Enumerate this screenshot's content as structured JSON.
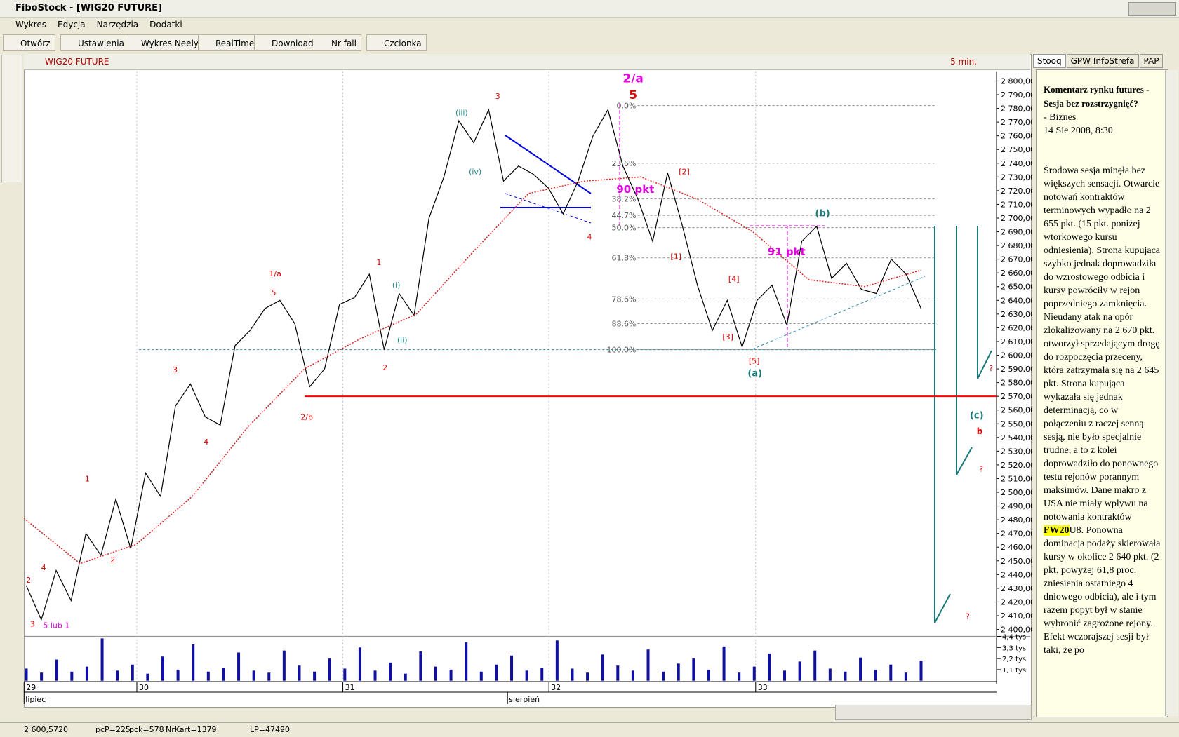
{
  "window": {
    "title": "FiboStock - [WIG20 FUTURE]"
  },
  "menu": [
    "Wykres",
    "Edycja",
    "Narzędzia",
    "Dodatki"
  ],
  "toolbar": [
    "Otwórz",
    "Ustawienia",
    "Wykres Neely",
    "RealTime",
    "Download",
    "Nr fali",
    "Czcionka"
  ],
  "chart_data": {
    "type": "line",
    "title": "WIG20 FUTURE",
    "interval": "5 min.",
    "series": [
      {
        "color": "#000000",
        "values": [
          2432,
          2407,
          2443,
          2421,
          2470,
          2454,
          2495,
          2459,
          2514,
          2497,
          2563,
          2579,
          2555,
          2549,
          2607,
          2618,
          2634,
          2640,
          2623,
          2577,
          2590,
          2637,
          2642,
          2659,
          2604,
          2645,
          2629,
          2700,
          2730,
          2771,
          2755,
          2779,
          2727,
          2738,
          2732,
          2722,
          2703,
          2727,
          2760,
          2779,
          2738,
          2714,
          2683,
          2733,
          2694,
          2651,
          2618,
          2640,
          2606,
          2640,
          2651,
          2622,
          2683,
          2694,
          2656,
          2667,
          2648,
          2645,
          2670,
          2659,
          2634
        ]
      },
      {
        "color": "#e02020",
        "dashed": true,
        "values": [
          2481,
          2448,
          2462,
          2497,
          2548,
          2590,
          2612,
          2630,
          2675,
          2718,
          2727,
          2730,
          2714,
          2690,
          2655,
          2650,
          2662
        ]
      }
    ],
    "ylim": [
      2396,
      2807
    ],
    "yticks": [
      {
        "value": 2400,
        "label": "2 400,00"
      },
      {
        "value": 2410,
        "label": "2 410,00"
      },
      {
        "value": 2420,
        "label": "2 420,00"
      },
      {
        "value": 2430,
        "label": "2 430,00"
      },
      {
        "value": 2440,
        "label": "2 440,00"
      },
      {
        "value": 2450,
        "label": "2 450,00"
      },
      {
        "value": 2460,
        "label": "2 460,00"
      },
      {
        "value": 2470,
        "label": "2 470,00"
      },
      {
        "value": 2480,
        "label": "2 480,00"
      },
      {
        "value": 2490,
        "label": "2 490,00"
      },
      {
        "value": 2500,
        "label": "2 500,00"
      },
      {
        "value": 2510,
        "label": "2 510,00"
      },
      {
        "value": 2520,
        "label": "2 520,00"
      },
      {
        "value": 2530,
        "label": "2 530,00"
      },
      {
        "value": 2540,
        "label": "2 540,00"
      },
      {
        "value": 2550,
        "label": "2 550,00"
      },
      {
        "value": 2560,
        "label": "2 560,00"
      },
      {
        "value": 2570,
        "label": "2 570,00"
      },
      {
        "value": 2580,
        "label": "2 580,00"
      },
      {
        "value": 2590,
        "label": "2 590,00"
      },
      {
        "value": 2600,
        "label": "2 600,00"
      },
      {
        "value": 2610,
        "label": "2 610,00"
      },
      {
        "value": 2620,
        "label": "2 620,00"
      },
      {
        "value": 2630,
        "label": "2 630,00"
      },
      {
        "value": 2640,
        "label": "2 640,00"
      },
      {
        "value": 2650,
        "label": "2 650,00"
      },
      {
        "value": 2660,
        "label": "2 660,00"
      },
      {
        "value": 2670,
        "label": "2 670,00"
      },
      {
        "value": 2680,
        "label": "2 680,00"
      },
      {
        "value": 2690,
        "label": "2 690,00"
      },
      {
        "value": 2700,
        "label": "2 700,00"
      },
      {
        "value": 2710,
        "label": "2 710,00"
      },
      {
        "value": 2720,
        "label": "2 720,00"
      },
      {
        "value": 2730,
        "label": "2 730,00"
      },
      {
        "value": 2740,
        "label": "2 740,00"
      },
      {
        "value": 2750,
        "label": "2 750,00"
      },
      {
        "value": 2760,
        "label": "2 760,00"
      },
      {
        "value": 2770,
        "label": "2 770,00"
      },
      {
        "value": 2780,
        "label": "2 780,00"
      },
      {
        "value": 2790,
        "label": "2 790,00"
      },
      {
        "value": 2800,
        "label": "2 800,00"
      }
    ],
    "fib_levels": [
      {
        "value": 2782,
        "label": "0.0%"
      },
      {
        "value": 2740,
        "label": "23.6%"
      },
      {
        "value": 2714,
        "label": "38.2%"
      },
      {
        "value": 2702,
        "label": "44.7%"
      },
      {
        "value": 2693,
        "label": "50.0%"
      },
      {
        "value": 2671,
        "label": "61.8%"
      },
      {
        "value": 2641,
        "label": "78.6%"
      },
      {
        "value": 2623,
        "label": "88.6%"
      },
      {
        "value": 2604,
        "label": "100.0%"
      }
    ],
    "hlines": [
      {
        "value": 2570,
        "color": "#ff0000"
      },
      {
        "value": 2604,
        "color": "#2a8a9a"
      }
    ],
    "annotations": [
      {
        "text": "3",
        "color": "#e00000"
      },
      {
        "text": "5 lub 1",
        "color": "#e000e0"
      },
      {
        "text": "4",
        "color": "#e00000"
      },
      {
        "text": "2",
        "color": "#e00000"
      },
      {
        "text": "1",
        "color": "#e00000"
      },
      {
        "text": "2",
        "color": "#e00000"
      },
      {
        "text": "3",
        "color": "#e00000"
      },
      {
        "text": "4",
        "color": "#e00000"
      },
      {
        "text": "1/a",
        "color": "#e00000"
      },
      {
        "text": "5",
        "color": "#e00000"
      },
      {
        "text": "2/b",
        "color": "#e00000"
      },
      {
        "text": "1",
        "color": "#e00000"
      },
      {
        "text": "2",
        "color": "#e00000"
      },
      {
        "text": "3",
        "color": "#e00000"
      },
      {
        "text": "4",
        "color": "#e00000"
      },
      {
        "text": "(iii)",
        "color": "#1a8a8a"
      },
      {
        "text": "(iv)",
        "color": "#1a8a8a"
      },
      {
        "text": "(i)",
        "color": "#1a8a8a"
      },
      {
        "text": "(ii)",
        "color": "#1a8a8a"
      },
      {
        "text": "2/a",
        "color": "#e000e0"
      },
      {
        "text": "5",
        "color": "#e00000"
      },
      {
        "text": "90 pkt",
        "color": "#e000e0"
      },
      {
        "text": "91 pkt",
        "color": "#e000e0"
      },
      {
        "text": "(a)",
        "color": "#1a7a7a"
      },
      {
        "text": "(b)",
        "color": "#1a7a7a"
      },
      {
        "text": "(c)",
        "color": "#1a7a7a"
      },
      {
        "text": "b",
        "color": "#e00000"
      },
      {
        "text": "?",
        "color": "#e00000"
      },
      {
        "text": "?",
        "color": "#e00000"
      },
      {
        "text": "?",
        "color": "#e00000"
      },
      {
        "text": "[2]",
        "color": "#e00000"
      },
      {
        "text": "[3]",
        "color": "#e00000"
      },
      {
        "text": "[4]",
        "color": "#e00000"
      },
      {
        "text": "[5]",
        "color": "#e00000"
      },
      {
        "text": "[1]",
        "color": "#e00000"
      }
    ],
    "x_labels": [
      "29",
      "30",
      "31",
      "32",
      "33"
    ],
    "months": [
      "lipiec",
      "sierpień"
    ],
    "volume": {
      "color": "#1010a0",
      "ylim": [
        0,
        4.4
      ],
      "yticks": [
        {
          "value": 4.4,
          "label": "4,4 tys"
        },
        {
          "value": 3.3,
          "label": "3,3 tys"
        },
        {
          "value": 2.2,
          "label": "2,2 tys"
        },
        {
          "value": 1.1,
          "label": "1,1 tys"
        }
      ],
      "values": [
        1.2,
        0.8,
        2.1,
        0.9,
        1.4,
        4.2,
        1.0,
        1.6,
        0.7,
        2.4,
        1.1,
        3.6,
        0.9,
        1.3,
        2.8,
        1.0,
        0.8,
        3.0,
        1.5,
        0.9,
        2.2,
        1.2,
        3.3,
        1.0,
        1.8,
        0.7,
        2.9,
        1.4,
        1.1,
        3.8,
        0.9,
        1.6,
        2.5,
        1.0,
        1.3,
        4.0,
        1.2,
        0.8,
        2.6,
        1.5,
        1.0,
        3.1,
        0.9,
        1.7,
        2.2,
        1.1,
        3.4,
        0.8,
        1.4,
        2.7,
        1.0,
        1.9,
        3.0,
        1.2,
        0.9,
        2.3,
        1.1,
        1.6,
        0.8,
        2.0
      ]
    }
  },
  "news": {
    "tabs": [
      "Stooq",
      "GPW InfoStrefa",
      "PAP"
    ],
    "headline": "Komentarz rynku futures - Sesja bez rozstrzygnięć?",
    "source": "- Biznes",
    "date": "14 Sie 2008, 8:30",
    "body_before": "Środowa sesja minęła bez większych sensacji. Otwarcie notowań kontraktów terminowych wypadło na 2 655 pkt. (15 pkt. poniżej wtorkowego kursu odniesienia). Strona kupująca szybko jednak doprowadziła do wzrostowego odbicia i kursy powróciły w rejon poprzedniego zamknięcia. Nieudany atak na opór zlokalizowany na 2 670 pkt. otworzył sprzedającym drogę do rozpoczęcia przeceny, która zatrzymała się na 2 645 pkt. Strona kupująca wykazała się jednak determinacją, co w połączeniu z raczej senną sesją, nie było specjalnie trudne, a to z kolei doprowadziło do ponownego testu rejonów porannym maksimów. Dane makro z USA nie miały wpływu na notowania kontraktów ",
    "highlight": "FW20",
    "body_after": "U8. Ponowna dominacja podaży skierowała kursy w okolice 2 640 pkt. (2 pkt. powyżej 61,8 proc. zniesienia ostatniego 4 dniowego odbicia), ale i tym razem popyt był w stanie wybronić zagrożone rejony. Efekt wczorajszej sesji był taki, że po"
  },
  "status_bar": [
    "2 600,5720",
    "pcP=225",
    "pck=578",
    "NrKart=1379",
    "LP=47490"
  ]
}
